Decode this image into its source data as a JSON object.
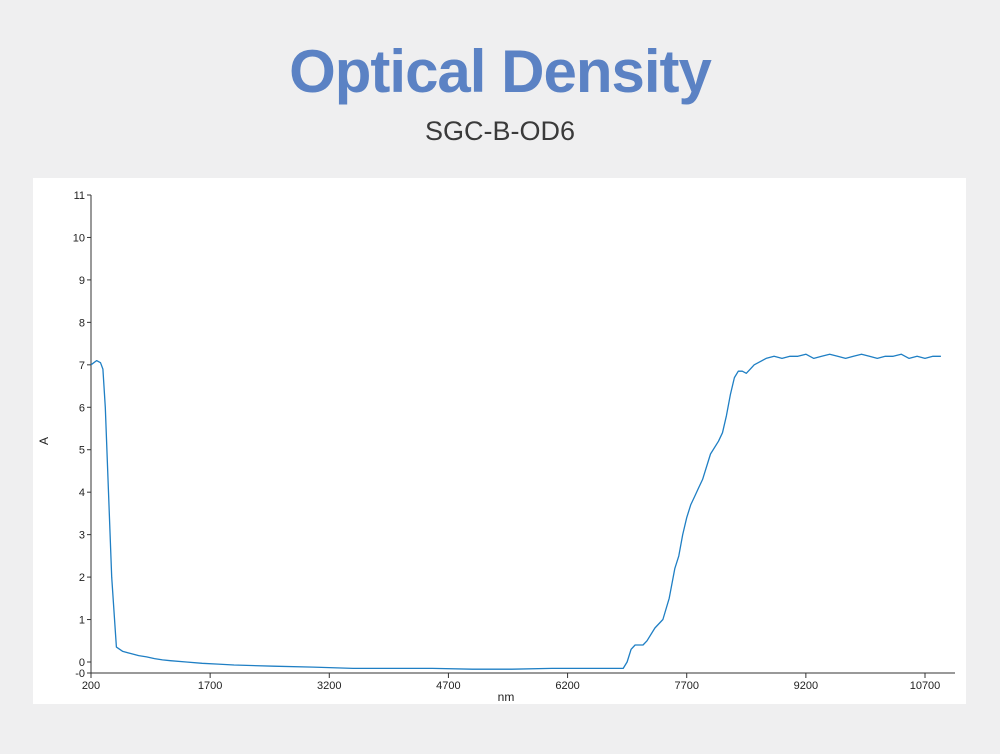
{
  "header": {
    "title": "Optical Density",
    "subtitle": "SGC-B-OD6"
  },
  "chart_data": {
    "type": "line",
    "xlabel": "nm",
    "ylabel": "A",
    "xlim": [
      200,
      10700
    ],
    "ylim": [
      -0.2,
      11
    ],
    "x_ticks": [
      200,
      1700,
      3200,
      4700,
      6200,
      7700,
      9200,
      10700
    ],
    "x_tick_labels": [
      "200",
      "1700",
      "3200",
      "4700",
      "6200",
      "7700",
      "9200",
      "10700"
    ],
    "y_ticks": [
      0,
      1,
      2,
      3,
      4,
      5,
      6,
      7,
      8,
      9,
      10,
      11
    ],
    "y_tick_labels": [
      "0",
      "1",
      "2",
      "3",
      "4",
      "5",
      "6",
      "7",
      "8",
      "9",
      "10",
      "11"
    ],
    "y_extra_tick_label": "-0",
    "line_color": "#1f7fc4",
    "grid": false,
    "series": [
      {
        "x": [
          200,
          270,
          320,
          350,
          380,
          420,
          460,
          520,
          600,
          700,
          800,
          900,
          1000,
          1100,
          1200,
          1400,
          1600,
          1800,
          2000,
          2500,
          3000,
          3500,
          4000,
          4500,
          5000,
          5500,
          6000,
          6500,
          6900,
          6950,
          7000,
          7050,
          7100,
          7150,
          7200,
          7300,
          7400,
          7480,
          7550,
          7600,
          7650,
          7700,
          7750,
          7800,
          7850,
          7900,
          8000,
          8100,
          8150,
          8200,
          8250,
          8300,
          8350,
          8400,
          8450,
          8500,
          8550,
          8600,
          8700,
          8800,
          8900,
          9000,
          9100,
          9200,
          9300,
          9400,
          9500,
          9600,
          9700,
          9800,
          9900,
          10000,
          10100,
          10200,
          10300,
          10400,
          10500,
          10600,
          10700,
          10800,
          10900
        ],
        "y": [
          7.0,
          7.1,
          7.05,
          6.9,
          6.0,
          4.0,
          2.0,
          0.35,
          0.25,
          0.2,
          0.15,
          0.12,
          0.08,
          0.05,
          0.03,
          0.0,
          -0.03,
          -0.05,
          -0.07,
          -0.1,
          -0.12,
          -0.15,
          -0.15,
          -0.15,
          -0.17,
          -0.17,
          -0.15,
          -0.15,
          -0.15,
          0.0,
          0.3,
          0.4,
          0.4,
          0.4,
          0.5,
          0.8,
          1.0,
          1.5,
          2.2,
          2.5,
          3.0,
          3.4,
          3.7,
          3.9,
          4.1,
          4.3,
          4.9,
          5.2,
          5.4,
          5.8,
          6.3,
          6.7,
          6.85,
          6.85,
          6.8,
          6.9,
          7.0,
          7.05,
          7.15,
          7.2,
          7.15,
          7.2,
          7.2,
          7.25,
          7.15,
          7.2,
          7.25,
          7.2,
          7.15,
          7.2,
          7.25,
          7.2,
          7.15,
          7.2,
          7.2,
          7.25,
          7.15,
          7.2,
          7.15,
          7.2,
          7.2
        ]
      }
    ]
  }
}
